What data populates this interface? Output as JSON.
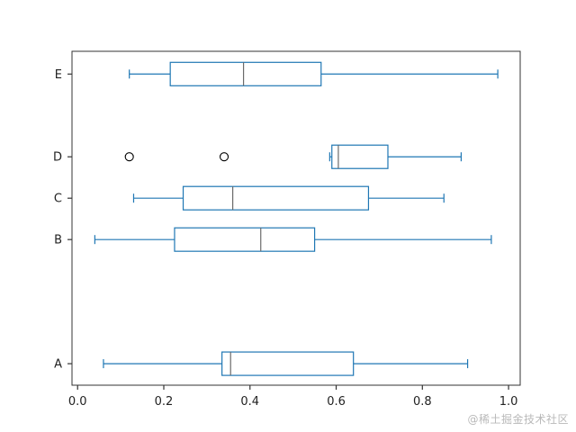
{
  "watermark": "@稀土掘金技术社区",
  "chart_data": {
    "type": "boxplot",
    "orientation": "horizontal",
    "title": "",
    "xlabel": "",
    "ylabel": "",
    "grid": false,
    "legend": false,
    "xlim": [
      -0.013,
      1.027
    ],
    "ylim": [
      0.48,
      8.55
    ],
    "x_ticks": [
      0.0,
      0.2,
      0.4,
      0.6,
      0.8,
      1.0
    ],
    "x_tick_labels": [
      "0.0",
      "0.2",
      "0.4",
      "0.6",
      "0.8",
      "1.0"
    ],
    "box_color": "#1f77b4",
    "median_color": "#6b6b6b",
    "outlier_color": "#000000",
    "axis_color": "#333333",
    "tick_label_color": "#222222",
    "series": [
      {
        "label": "A",
        "position": 1,
        "whisker_low": 0.06,
        "q1": 0.335,
        "median": 0.355,
        "q3": 0.64,
        "whisker_high": 0.905,
        "outliers": []
      },
      {
        "label": "B",
        "position": 4,
        "whisker_low": 0.04,
        "q1": 0.225,
        "median": 0.425,
        "q3": 0.55,
        "whisker_high": 0.96,
        "outliers": []
      },
      {
        "label": "C",
        "position": 5,
        "whisker_low": 0.13,
        "q1": 0.245,
        "median": 0.36,
        "q3": 0.675,
        "whisker_high": 0.85,
        "outliers": []
      },
      {
        "label": "D",
        "position": 6,
        "whisker_low": 0.585,
        "q1": 0.59,
        "median": 0.605,
        "q3": 0.72,
        "whisker_high": 0.89,
        "outliers": [
          0.12,
          0.34
        ]
      },
      {
        "label": "E",
        "position": 8,
        "whisker_low": 0.12,
        "q1": 0.215,
        "median": 0.385,
        "q3": 0.565,
        "whisker_high": 0.975,
        "outliers": []
      }
    ]
  }
}
